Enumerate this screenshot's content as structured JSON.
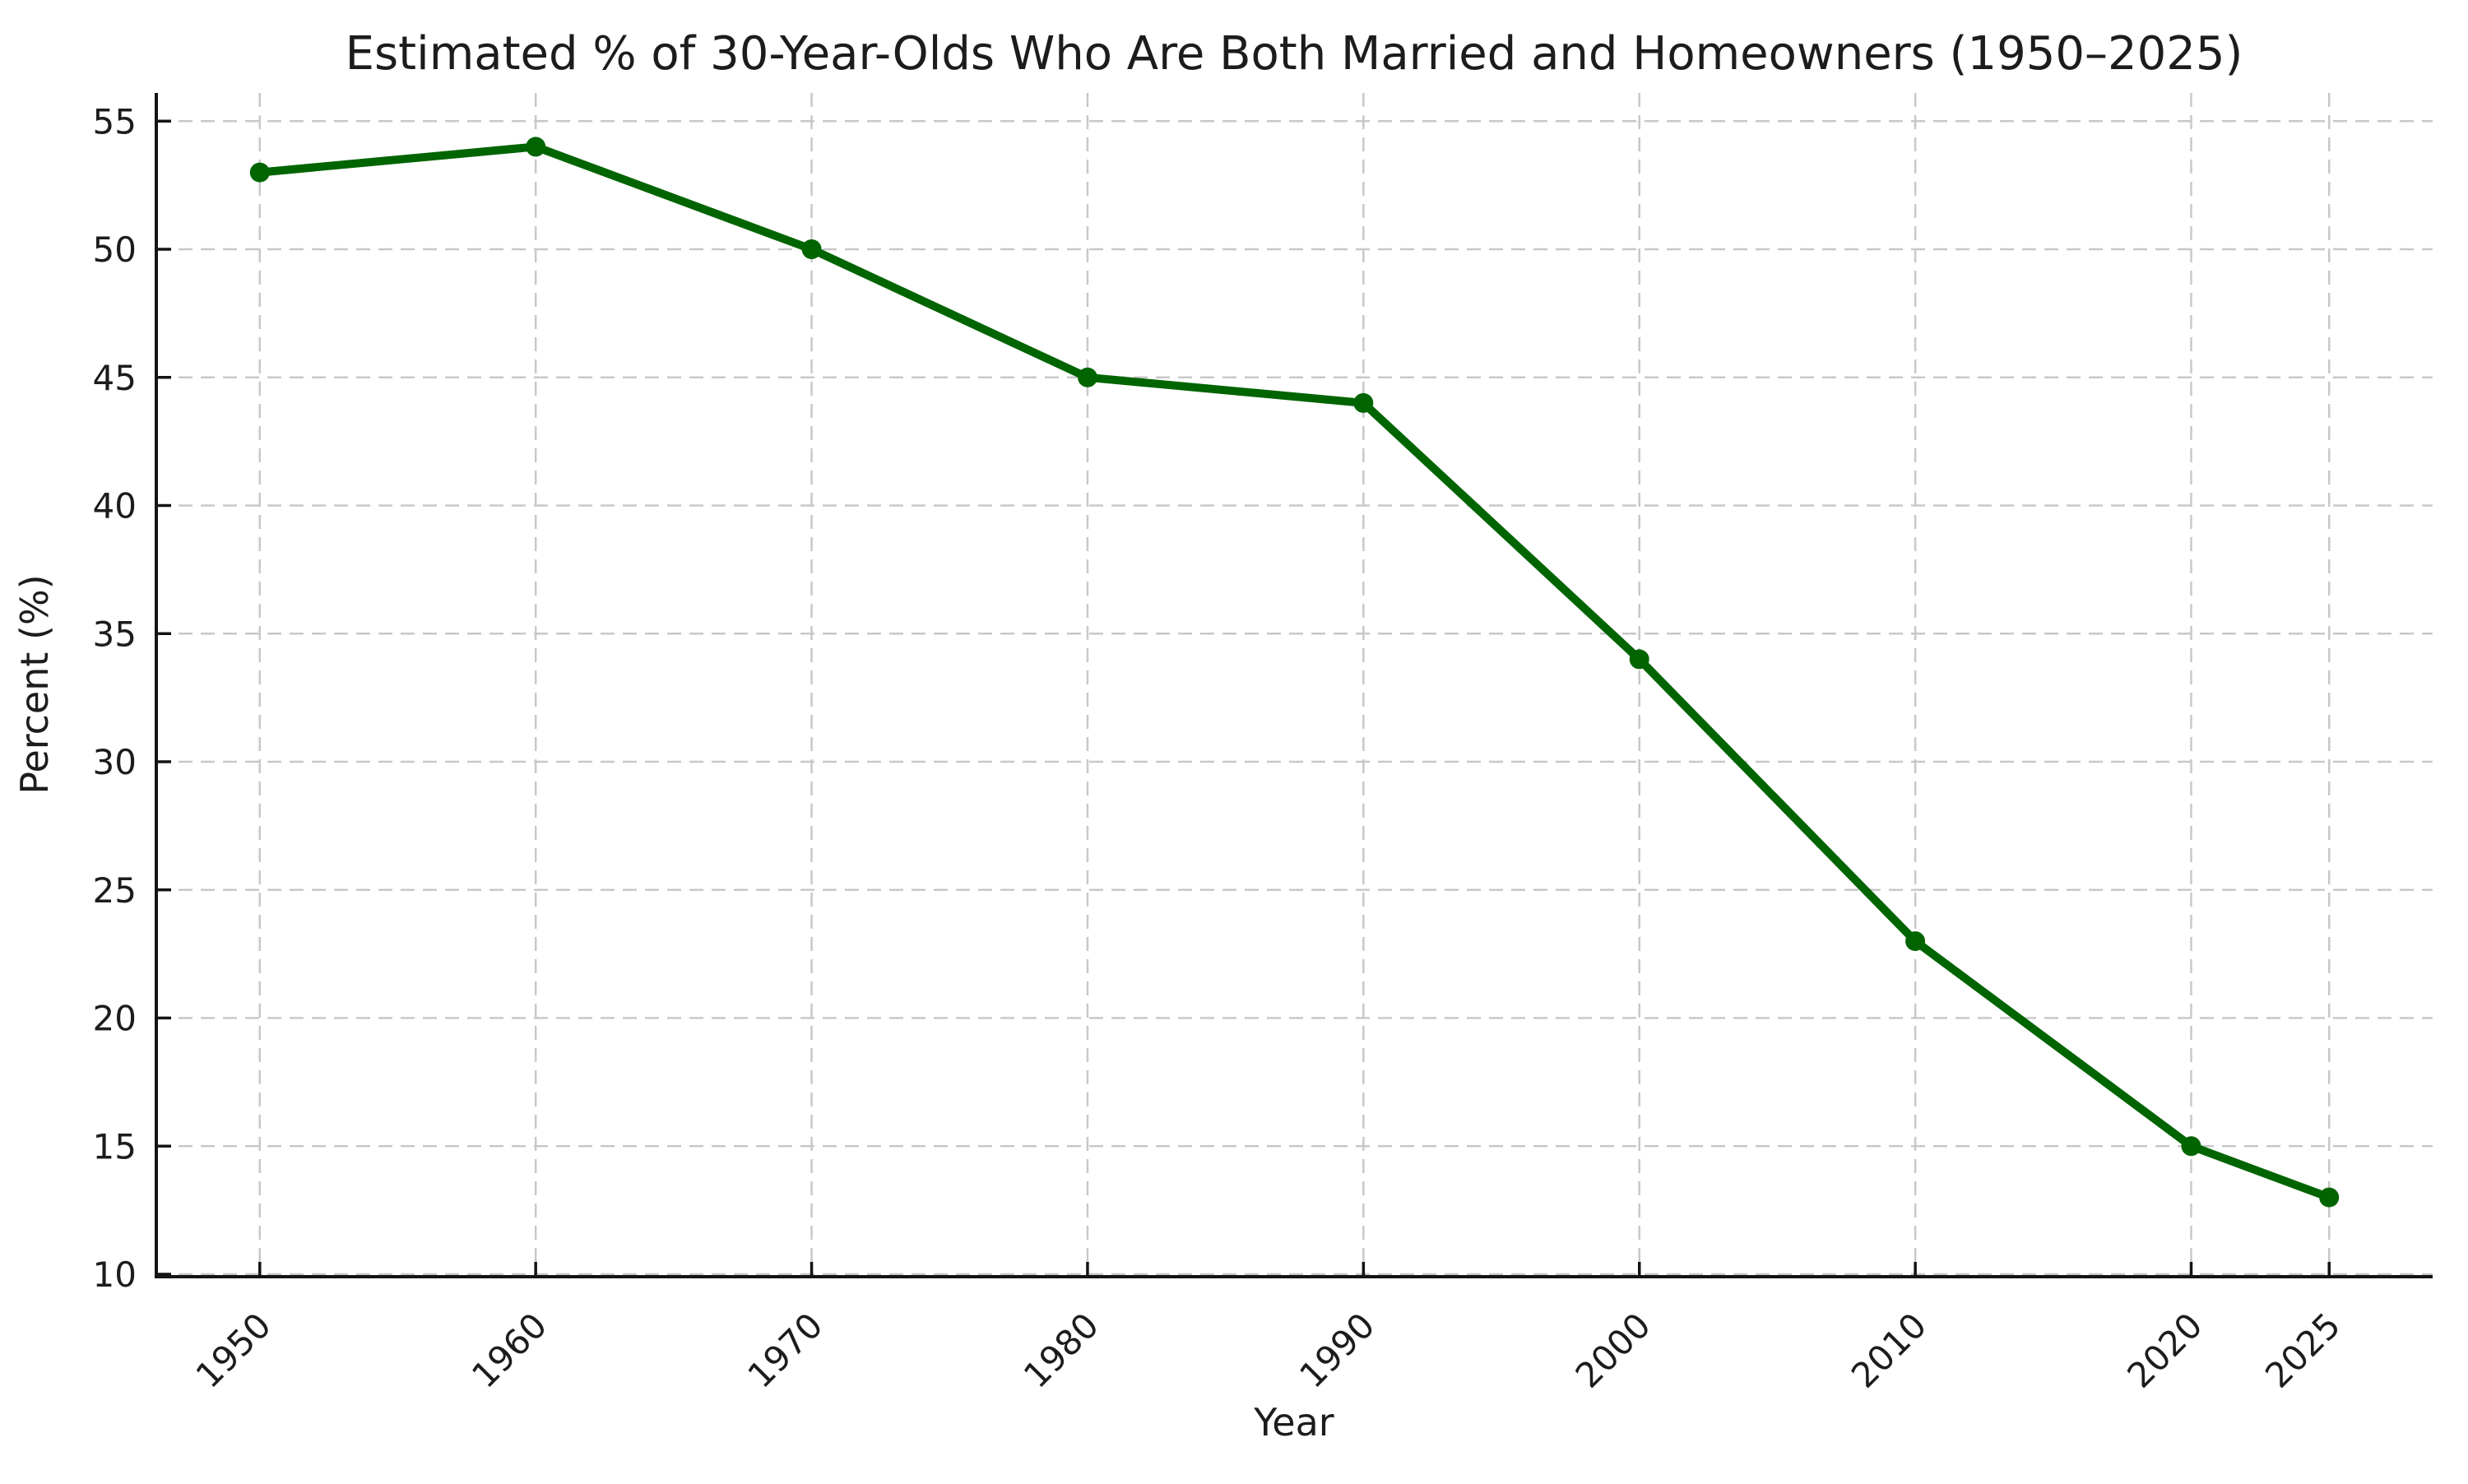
{
  "figure": {
    "background": "#ffffff"
  },
  "chart_data": {
    "type": "line",
    "title": "Estimated % of 30-Year-Olds Who Are Both Married and Homeowners (1950–2025)",
    "xlabel": "Year",
    "ylabel": "Percent (%)",
    "x": [
      1950,
      1960,
      1970,
      1980,
      1990,
      2000,
      2010,
      2020,
      2025
    ],
    "values": [
      53,
      54,
      50,
      45,
      44,
      34,
      23,
      15,
      13
    ],
    "xticks": [
      1950,
      1960,
      1970,
      1980,
      1990,
      2000,
      2010,
      2020,
      2025
    ],
    "xtick_labels": [
      "1950",
      "1960",
      "1970",
      "1980",
      "1990",
      "2000",
      "2010",
      "2020",
      "2025"
    ],
    "x_tick_rotation": 45,
    "yticks": [
      10,
      15,
      20,
      25,
      30,
      35,
      40,
      45,
      50,
      55
    ],
    "ytick_labels": [
      "10",
      "15",
      "20",
      "25",
      "30",
      "35",
      "40",
      "45",
      "50",
      "55"
    ],
    "xlim": [
      1946.25,
      2028.75
    ],
    "ylim": [
      10,
      56.1
    ],
    "grid": true,
    "grid_style": "dashed",
    "legend_position": "none",
    "styles": {
      "line_color": "#006400",
      "marker_color": "#006400",
      "marker_shape": "circle",
      "grid_color": "#c8c8c8",
      "spine_color": "#141414",
      "tick_color": "#141414",
      "text_color": "#1c1c1c"
    }
  }
}
